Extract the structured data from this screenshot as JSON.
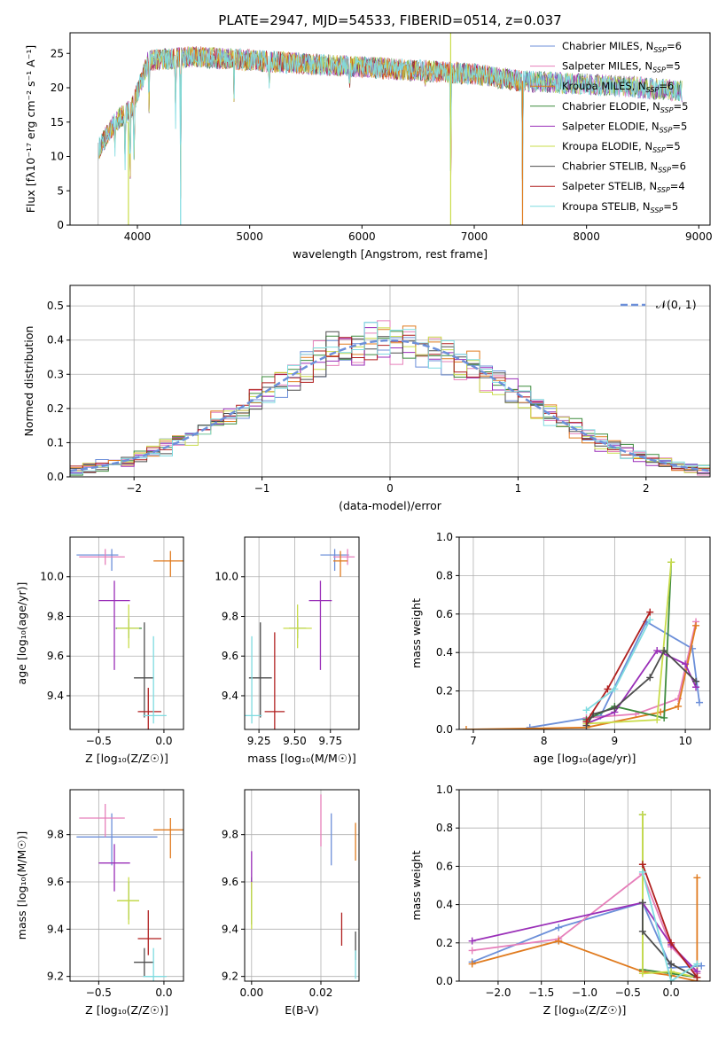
{
  "figure": {
    "title": "PLATE=2947, MJD=54533, FIBERID=0514, z=0.037"
  },
  "models": [
    {
      "name": "Chabrier MILES",
      "nssp": "6",
      "color": "#6c8fd9"
    },
    {
      "name": "Salpeter MILES",
      "nssp": "5",
      "color": "#e67fba"
    },
    {
      "name": "Kroupa MILES",
      "nssp": "6",
      "color": "#e07b1f"
    },
    {
      "name": "Chabrier ELODIE",
      "nssp": "5",
      "color": "#3d8b3d"
    },
    {
      "name": "Salpeter ELODIE",
      "nssp": "5",
      "color": "#9a2fb8"
    },
    {
      "name": "Kroupa ELODIE",
      "nssp": "5",
      "color": "#c9dc4a"
    },
    {
      "name": "Chabrier STELIB",
      "nssp": "6",
      "color": "#4d4d4d"
    },
    {
      "name": "Salpeter STELIB",
      "nssp": "4",
      "color": "#b01f1f"
    },
    {
      "name": "Kroupa STELIB",
      "nssp": "5",
      "color": "#7fdbe0"
    }
  ],
  "chart_data": [
    {
      "id": "spectrum",
      "type": "line",
      "title": "PLATE=2947, MJD=54533, FIBERID=0514, z=0.037",
      "xlabel": "wavelength [Angstrom, rest frame]",
      "ylabel": "Flux [fλ10⁻¹⁷ erg cm⁻² s⁻¹ A⁻¹]",
      "xlim": [
        3400,
        9100
      ],
      "ylim": [
        0,
        28
      ],
      "xticks": [
        4000,
        5000,
        6000,
        7000,
        8000,
        9000
      ],
      "yticks": [
        0,
        5,
        10,
        15,
        20,
        25
      ],
      "grid": false,
      "legend": "upper-right",
      "x_range_observed": [
        3650,
        8850
      ],
      "continuum_points": [
        [
          3650,
          11
        ],
        [
          3800,
          15
        ],
        [
          3950,
          17
        ],
        [
          4100,
          24
        ],
        [
          4500,
          24.5
        ],
        [
          5000,
          24
        ],
        [
          5500,
          23.5
        ],
        [
          6000,
          23
        ],
        [
          6500,
          22.5
        ],
        [
          7000,
          22
        ],
        [
          7400,
          21
        ],
        [
          8000,
          20.5
        ],
        [
          8500,
          20
        ],
        [
          8850,
          19.5
        ]
      ],
      "absorption_features": [
        [
          3800,
          10
        ],
        [
          3890,
          8
        ],
        [
          3935,
          5
        ],
        [
          3970,
          6
        ],
        [
          4103,
          15
        ],
        [
          4340,
          14
        ],
        [
          4385,
          0
        ],
        [
          4861,
          17
        ],
        [
          5175,
          19
        ],
        [
          5890,
          19
        ],
        [
          6563,
          20
        ],
        [
          6790,
          0
        ],
        [
          7430,
          0
        ]
      ]
    },
    {
      "id": "residuals",
      "type": "area",
      "xlabel": "(data-model)/error",
      "ylabel": "Normed distribution",
      "xlim": [
        -2.5,
        2.5
      ],
      "ylim": [
        0,
        0.56
      ],
      "xticks": [
        -2,
        -1,
        0,
        1,
        2
      ],
      "yticks": [
        0.0,
        0.1,
        0.2,
        0.3,
        0.4,
        0.5
      ],
      "grid": true,
      "legend": "upper-right",
      "legend_label": "𝒩(0, 1)",
      "bin_width": 0.1,
      "reference_curve": "normal(0,1)"
    },
    {
      "id": "age_vs_Z",
      "type": "scatter",
      "xlabel": "Z [log₁₀(Z/Z☉)]",
      "ylabel": "age  [log₁₀(age/yr)]",
      "xlim": [
        -0.72,
        0.15
      ],
      "ylim": [
        9.23,
        10.2
      ],
      "xticks": [
        -0.5,
        0.0
      ],
      "yticks": [
        9.4,
        9.6,
        9.8,
        10.0
      ],
      "grid": true,
      "points": [
        {
          "x": -0.4,
          "y": 10.11,
          "xerr": [
            0.27,
            0.05
          ],
          "yerr": [
            0.08,
            0.03
          ]
        },
        {
          "x": -0.45,
          "y": 10.1,
          "xerr": [
            0.2,
            0.15
          ],
          "yerr": [
            0.04,
            0.04
          ]
        },
        {
          "x": 0.05,
          "y": 10.08,
          "xerr": [
            0.13,
            0.1
          ],
          "yerr": [
            0.08,
            0.05
          ]
        },
        {
          "x": -0.27,
          "y": 9.74,
          "xerr": [
            0.1,
            0.1
          ],
          "yerr": [
            0.05,
            0.05
          ]
        },
        {
          "x": -0.38,
          "y": 9.88,
          "xerr": [
            0.12,
            0.12
          ],
          "yerr": [
            0.35,
            0.1
          ]
        },
        {
          "x": -0.27,
          "y": 9.74,
          "xerr": [
            0.09,
            0.08
          ],
          "yerr": [
            0.1,
            0.12
          ]
        },
        {
          "x": -0.15,
          "y": 9.49,
          "xerr": [
            0.08,
            0.07
          ],
          "yerr": [
            0.2,
            0.28
          ]
        },
        {
          "x": -0.12,
          "y": 9.32,
          "xerr": [
            0.08,
            0.1
          ],
          "yerr": [
            0.1,
            0.12
          ]
        },
        {
          "x": -0.08,
          "y": 9.3,
          "xerr": [
            0.08,
            0.1
          ],
          "yerr": [
            0.04,
            0.4
          ]
        }
      ]
    },
    {
      "id": "age_vs_mass",
      "type": "scatter",
      "xlabel": "mass [log₁₀(M/M☉)]",
      "ylabel": "",
      "xlim": [
        9.15,
        9.95
      ],
      "ylim": [
        9.23,
        10.2
      ],
      "xticks": [
        9.25,
        9.5,
        9.75
      ],
      "yticks": [
        9.4,
        9.6,
        9.8,
        10.0
      ],
      "grid": true,
      "points": [
        {
          "x": 9.78,
          "y": 10.11,
          "xerr": [
            0.1,
            0.1
          ],
          "yerr": [
            0.08,
            0.03
          ]
        },
        {
          "x": 9.87,
          "y": 10.1,
          "xerr": [
            0.1,
            0.05
          ],
          "yerr": [
            0.04,
            0.04
          ]
        },
        {
          "x": 9.82,
          "y": 10.08,
          "xerr": [
            0.05,
            0.05
          ],
          "yerr": [
            0.08,
            0.05
          ]
        },
        {
          "x": 9.52,
          "y": 9.74,
          "xerr": [
            0.06,
            0.06
          ],
          "yerr": [
            0.05,
            0.05
          ]
        },
        {
          "x": 9.68,
          "y": 9.88,
          "xerr": [
            0.08,
            0.08
          ],
          "yerr": [
            0.35,
            0.1
          ]
        },
        {
          "x": 9.52,
          "y": 9.74,
          "xerr": [
            0.1,
            0.1
          ],
          "yerr": [
            0.1,
            0.12
          ]
        },
        {
          "x": 9.26,
          "y": 9.49,
          "xerr": [
            0.08,
            0.08
          ],
          "yerr": [
            0.2,
            0.28
          ]
        },
        {
          "x": 9.36,
          "y": 9.32,
          "xerr": [
            0.07,
            0.07
          ],
          "yerr": [
            0.1,
            0.4
          ]
        },
        {
          "x": 9.2,
          "y": 9.3,
          "xerr": [
            0.05,
            0.07
          ],
          "yerr": [
            0.04,
            0.4
          ]
        }
      ]
    },
    {
      "id": "massweight_vs_age",
      "type": "line",
      "xlabel": "age  [log₁₀(age/yr)]",
      "ylabel": "mass weight",
      "xlim": [
        6.8,
        10.35
      ],
      "ylim": [
        0,
        1.0
      ],
      "xticks": [
        7,
        8,
        9,
        10
      ],
      "yticks": [
        0.0,
        0.2,
        0.4,
        0.6,
        0.8,
        1.0
      ],
      "grid": true,
      "series": [
        {
          "x": [
            7.8,
            8.8,
            9.45,
            10.1,
            10.2
          ],
          "y": [
            0.01,
            0.07,
            0.56,
            0.42,
            0.14
          ]
        },
        {
          "x": [
            8.6,
            9.3,
            9.9,
            10.15
          ],
          "y": [
            0.06,
            0.08,
            0.16,
            0.56
          ]
        },
        {
          "x": [
            6.9,
            8.6,
            9.65,
            9.9,
            10.15
          ],
          "y": [
            0.0,
            0.01,
            0.09,
            0.12,
            0.54
          ]
        },
        {
          "x": [
            8.6,
            9.0,
            9.7,
            9.8
          ],
          "y": [
            0.05,
            0.12,
            0.06,
            0.87
          ]
        },
        {
          "x": [
            8.6,
            9.0,
            9.6,
            10.0,
            10.15
          ],
          "y": [
            0.03,
            0.09,
            0.41,
            0.34,
            0.22
          ]
        },
        {
          "x": [
            8.6,
            9.6,
            9.8
          ],
          "y": [
            0.03,
            0.05,
            0.87
          ]
        },
        {
          "x": [
            8.6,
            8.7,
            9.0,
            9.5,
            9.7,
            10.15
          ],
          "y": [
            0.02,
            0.08,
            0.11,
            0.27,
            0.41,
            0.25
          ]
        },
        {
          "x": [
            8.6,
            8.9,
            9.5
          ],
          "y": [
            0.04,
            0.21,
            0.61
          ]
        },
        {
          "x": [
            8.6,
            9.0,
            9.5
          ],
          "y": [
            0.1,
            0.21,
            0.57
          ]
        }
      ]
    },
    {
      "id": "mass_vs_Z",
      "type": "scatter",
      "xlabel": "Z [log₁₀(Z/Z☉)]",
      "ylabel": "mass [log₁₀(M/M☉)]",
      "xlim": [
        -0.72,
        0.15
      ],
      "ylim": [
        9.18,
        9.99
      ],
      "xticks": [
        -0.5,
        0.0
      ],
      "yticks": [
        9.2,
        9.4,
        9.6,
        9.8
      ],
      "grid": true,
      "points": [
        {
          "x": -0.4,
          "y": 9.79,
          "xerr": [
            0.27,
            0.35
          ],
          "yerr": [
            0.12,
            0.1
          ]
        },
        {
          "x": -0.45,
          "y": 9.87,
          "xerr": [
            0.2,
            0.15
          ],
          "yerr": [
            0.08,
            0.06
          ]
        },
        {
          "x": 0.05,
          "y": 9.82,
          "xerr": [
            0.13,
            0.1
          ],
          "yerr": [
            0.12,
            0.05
          ]
        },
        {
          "x": -0.27,
          "y": 9.52,
          "xerr": [
            0.08,
            0.08
          ],
          "yerr": [
            0.08,
            0.08
          ]
        },
        {
          "x": -0.38,
          "y": 9.68,
          "xerr": [
            0.12,
            0.12
          ],
          "yerr": [
            0.12,
            0.08
          ]
        },
        {
          "x": -0.27,
          "y": 9.52,
          "xerr": [
            0.09,
            0.08
          ],
          "yerr": [
            0.1,
            0.1
          ]
        },
        {
          "x": -0.15,
          "y": 9.26,
          "xerr": [
            0.08,
            0.07
          ],
          "yerr": [
            0.06,
            0.06
          ]
        },
        {
          "x": -0.12,
          "y": 9.36,
          "xerr": [
            0.08,
            0.1
          ],
          "yerr": [
            0.07,
            0.12
          ]
        },
        {
          "x": -0.08,
          "y": 9.2,
          "xerr": [
            0.08,
            0.1
          ],
          "yerr": [
            0.04,
            0.12
          ]
        }
      ]
    },
    {
      "id": "mass_vs_EBV",
      "type": "scatter",
      "xlabel": "E(B-V)",
      "ylabel": "",
      "xlim": [
        -0.002,
        0.031
      ],
      "ylim": [
        9.18,
        9.99
      ],
      "xticks": [
        0.0,
        0.02
      ],
      "yticks": [
        9.2,
        9.4,
        9.6,
        9.8
      ],
      "grid": true,
      "points": [
        {
          "x": 0.023,
          "y": 9.79,
          "xerr": [
            0,
            0
          ],
          "yerr": [
            0.12,
            0.1
          ]
        },
        {
          "x": 0.02,
          "y": 9.87,
          "xerr": [
            0,
            0
          ],
          "yerr": [
            0.12,
            0.1
          ]
        },
        {
          "x": 0.03,
          "y": 9.77,
          "xerr": [
            0,
            0
          ],
          "yerr": [
            0.08,
            0.08
          ]
        },
        {
          "x": 0.0,
          "y": 9.52,
          "xerr": [
            0,
            0
          ],
          "yerr": [
            0.1,
            0.1
          ]
        },
        {
          "x": 0.0,
          "y": 9.65,
          "xerr": [
            0,
            0
          ],
          "yerr": [
            0.08,
            0.08
          ]
        },
        {
          "x": 0.0,
          "y": 9.5,
          "xerr": [
            0,
            0
          ],
          "yerr": [
            0.1,
            0.1
          ]
        },
        {
          "x": 0.03,
          "y": 9.33,
          "xerr": [
            0,
            0
          ],
          "yerr": [
            0.06,
            0.06
          ]
        },
        {
          "x": 0.026,
          "y": 9.4,
          "xerr": [
            0,
            0
          ],
          "yerr": [
            0.07,
            0.07
          ]
        },
        {
          "x": 0.03,
          "y": 9.25,
          "xerr": [
            0,
            0
          ],
          "yerr": [
            0.06,
            0.06
          ]
        }
      ]
    },
    {
      "id": "massweight_vs_Z",
      "type": "line",
      "xlabel": "Z [log₁₀(Z/Z☉)]",
      "ylabel": "mass weight",
      "xlim": [
        -2.45,
        0.45
      ],
      "ylim": [
        0,
        1.0
      ],
      "xticks": [
        -2.0,
        -1.5,
        -1.0,
        -0.5,
        0.0
      ],
      "yticks": [
        0.0,
        0.2,
        0.4,
        0.6,
        0.8,
        1.0
      ],
      "grid": true,
      "series": [
        {
          "x": [
            -2.3,
            -1.3,
            -0.33,
            0.0,
            0.35
          ],
          "y": [
            0.1,
            0.28,
            0.41,
            0.07,
            0.08
          ]
        },
        {
          "x": [
            -2.3,
            -1.3,
            -0.33,
            0.0,
            0.3
          ],
          "y": [
            0.16,
            0.22,
            0.56,
            0.18,
            0.04
          ]
        },
        {
          "x": [
            -2.3,
            -1.3,
            -0.33,
            0.0,
            0.3,
            0.3
          ],
          "y": [
            0.09,
            0.21,
            0.05,
            0.03,
            0.0,
            0.54
          ]
        },
        {
          "x": [
            -0.33,
            -0.33,
            0.0,
            0.3
          ],
          "y": [
            0.87,
            0.06,
            0.04,
            0.02
          ]
        },
        {
          "x": [
            -2.3,
            -0.33,
            0.0,
            0.3
          ],
          "y": [
            0.21,
            0.41,
            0.19,
            0.05
          ]
        },
        {
          "x": [
            -0.33,
            -0.33,
            0.0,
            0.3
          ],
          "y": [
            0.87,
            0.04,
            0.05,
            0.02
          ]
        },
        {
          "x": [
            -0.33,
            -0.33,
            0.0,
            0.3
          ],
          "y": [
            0.41,
            0.26,
            0.09,
            0.02
          ]
        },
        {
          "x": [
            -0.33,
            0.0,
            0.3
          ],
          "y": [
            0.61,
            0.2,
            0.02
          ]
        },
        {
          "x": [
            -0.33,
            0.0,
            0.3
          ],
          "y": [
            0.57,
            0.0,
            0.09
          ]
        }
      ]
    }
  ]
}
